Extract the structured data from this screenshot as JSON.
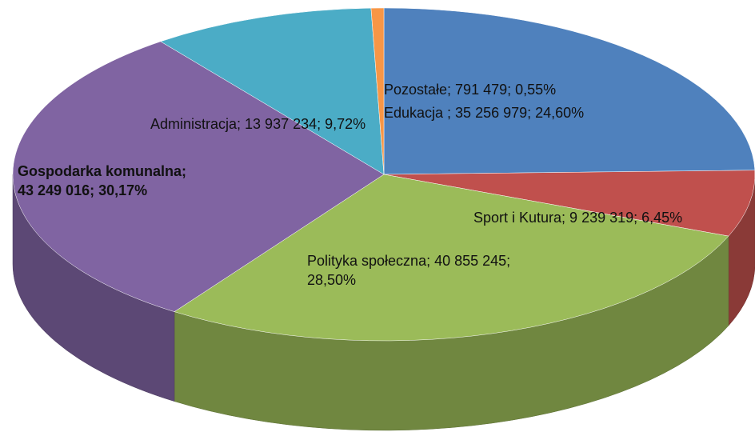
{
  "chart_data": {
    "type": "pie",
    "categories": [
      "Edukacja ",
      "Sport i Kutura",
      "Polityka społeczna",
      "Gospodarka komunalna",
      "Administracja",
      "Pozostałe"
    ],
    "values": [
      35256979,
      9239319,
      40855245,
      43249016,
      13937234,
      791479
    ],
    "value_labels": [
      "Edukacja ; 35 256 979; 24,60%",
      "Sport i Kutura; 9 239 319; 6,45%",
      "Polityka społeczna; 40 855 245;\n28,50%",
      "Gospodarka komunalna;\n43 249 016; 30,17%",
      "Administracja; 13 937 234; 9,72%",
      "Pozostałe; 791 479; 0,55%"
    ],
    "colors": [
      "#4f81bd",
      "#c0504d",
      "#9bbb59",
      "#8064a2",
      "#4bacc6",
      "#f79646"
    ]
  }
}
